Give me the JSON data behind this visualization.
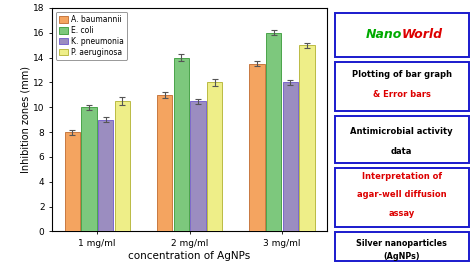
{
  "categories": [
    "1 mg/ml",
    "2 mg/ml",
    "3 mg/ml"
  ],
  "species": [
    "A. baumannii",
    "E. coli",
    "K. pneumonia",
    "P. aeruginosa"
  ],
  "values": [
    [
      8.0,
      11.0,
      13.5
    ],
    [
      10.0,
      14.0,
      16.0
    ],
    [
      9.0,
      10.5,
      12.0
    ],
    [
      10.5,
      12.0,
      15.0
    ]
  ],
  "errors": [
    [
      0.2,
      0.25,
      0.2
    ],
    [
      0.2,
      0.3,
      0.2
    ],
    [
      0.2,
      0.2,
      0.2
    ],
    [
      0.3,
      0.3,
      0.2
    ]
  ],
  "bar_colors": [
    "#F4A460",
    "#7DC87D",
    "#9B8DC0",
    "#EEEE88"
  ],
  "bar_edge_colors": [
    "#C87941",
    "#4AA44A",
    "#7B68CC",
    "#BBBB44"
  ],
  "ylim": [
    0,
    18
  ],
  "yticks": [
    0,
    2,
    4,
    6,
    8,
    10,
    12,
    14,
    16,
    18
  ],
  "ylabel": "Inhibition zones (mm)",
  "xlabel": "concentration of AgNPs",
  "bar_width": 0.18,
  "background_color": "#ffffff",
  "plot_bg": "#ffffff",
  "nano_world_green": "#00AA00",
  "nano_world_red": "#DD0000",
  "box_blue": "#1A1ACD",
  "legend_labels": [
    "A. baumannii",
    "E. coli",
    "K. pneumonia",
    "P. aeruginosa"
  ]
}
